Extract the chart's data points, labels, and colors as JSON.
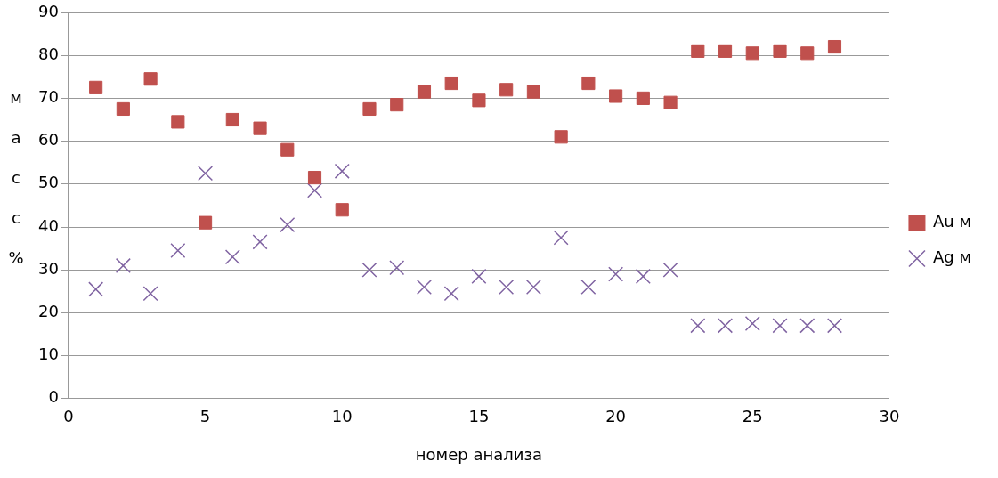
{
  "chart_data": {
    "type": "scatter",
    "xlabel": "номер анализа",
    "ylabel": "масс%",
    "x": [
      1,
      2,
      3,
      4,
      5,
      6,
      7,
      8,
      9,
      10,
      11,
      12,
      13,
      14,
      15,
      16,
      17,
      18,
      19,
      20,
      21,
      22,
      23,
      24,
      25,
      26,
      27,
      28
    ],
    "series": [
      {
        "name": "Au м",
        "color": "#c0504d",
        "marker": "square",
        "values": [
          72.5,
          67.5,
          74.5,
          64.5,
          41,
          65,
          63,
          58,
          51.5,
          44,
          67.5,
          68.5,
          71.5,
          73.5,
          69.5,
          72,
          71.5,
          61,
          73.5,
          70.5,
          70,
          69,
          81,
          81,
          80.5,
          81,
          80.5,
          82
        ]
      },
      {
        "name": "Ag м",
        "color": "#8064a2",
        "marker": "cross",
        "values": [
          25.5,
          31,
          24.5,
          34.5,
          52.5,
          33,
          36.5,
          40.5,
          48.5,
          53,
          30,
          30.5,
          26,
          24.5,
          28.5,
          26,
          26,
          37.5,
          26,
          29,
          28.5,
          30,
          17,
          17,
          17.5,
          17,
          17,
          17
        ]
      }
    ],
    "xlim": [
      0,
      30
    ],
    "xticks": [
      0,
      5,
      10,
      15,
      20,
      25,
      30
    ],
    "ylim": [
      0,
      90
    ],
    "yticks": [
      0,
      10,
      20,
      30,
      40,
      50,
      60,
      70,
      80,
      90
    ],
    "grid": "y",
    "legend": "right"
  }
}
